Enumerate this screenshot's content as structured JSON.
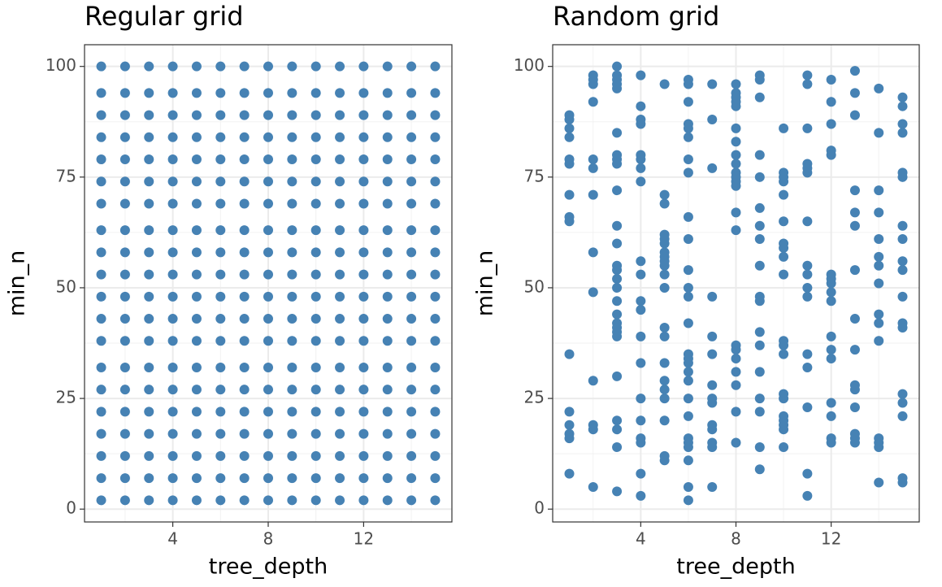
{
  "chart_data": [
    {
      "type": "scatter",
      "title": "Regular grid",
      "xlabel": "tree_depth",
      "ylabel": "min_n",
      "color": "#4682b4",
      "xlim": [
        0.3,
        15.7
      ],
      "ylim": [
        -2.9,
        104.9
      ],
      "xticks": [
        4,
        8,
        12
      ],
      "yticks": [
        0,
        25,
        50,
        75,
        100
      ],
      "xminor": [
        2,
        6,
        10,
        14
      ],
      "yminor": [
        12.5,
        37.5,
        62.5,
        87.5
      ],
      "grid": true,
      "x": [
        1,
        2,
        3,
        4,
        5,
        6,
        7,
        8,
        9,
        10,
        11,
        12,
        13,
        14,
        15,
        1,
        2,
        3,
        4,
        5,
        6,
        7,
        8,
        9,
        10,
        11,
        12,
        13,
        14,
        15,
        1,
        2,
        3,
        4,
        5,
        6,
        7,
        8,
        9,
        10,
        11,
        12,
        13,
        14,
        15,
        1,
        2,
        3,
        4,
        5,
        6,
        7,
        8,
        9,
        10,
        11,
        12,
        13,
        14,
        15,
        1,
        2,
        3,
        4,
        5,
        6,
        7,
        8,
        9,
        10,
        11,
        12,
        13,
        14,
        15,
        1,
        2,
        3,
        4,
        5,
        6,
        7,
        8,
        9,
        10,
        11,
        12,
        13,
        14,
        15,
        1,
        2,
        3,
        4,
        5,
        6,
        7,
        8,
        9,
        10,
        11,
        12,
        13,
        14,
        15,
        1,
        2,
        3,
        4,
        5,
        6,
        7,
        8,
        9,
        10,
        11,
        12,
        13,
        14,
        15,
        1,
        2,
        3,
        4,
        5,
        6,
        7,
        8,
        9,
        10,
        11,
        12,
        13,
        14,
        15,
        1,
        2,
        3,
        4,
        5,
        6,
        7,
        8,
        9,
        10,
        11,
        12,
        13,
        14,
        15,
        1,
        2,
        3,
        4,
        5,
        6,
        7,
        8,
        9,
        10,
        11,
        12,
        13,
        14,
        15,
        1,
        2,
        3,
        4,
        5,
        6,
        7,
        8,
        9,
        10,
        11,
        12,
        13,
        14,
        15,
        1,
        2,
        3,
        4,
        5,
        6,
        7,
        8,
        9,
        10,
        11,
        12,
        13,
        14,
        15,
        1,
        2,
        3,
        4,
        5,
        6,
        7,
        8,
        9,
        10,
        11,
        12,
        13,
        14,
        15,
        1,
        2,
        3,
        4,
        5,
        6,
        7,
        8,
        9,
        10,
        11,
        12,
        13,
        14,
        15,
        1,
        2,
        3,
        4,
        5,
        6,
        7,
        8,
        9,
        10,
        11,
        12,
        13,
        14,
        15,
        1,
        2,
        3,
        4,
        5,
        6,
        7,
        8,
        9,
        10,
        11,
        12,
        13,
        14,
        15,
        1,
        2,
        3,
        4,
        5,
        6,
        7,
        8,
        9,
        10,
        11,
        12,
        13,
        14,
        15,
        1,
        2,
        3,
        4,
        5,
        6,
        7,
        8,
        9,
        10,
        11,
        12,
        13,
        14,
        15,
        1,
        2,
        3,
        4,
        5,
        6,
        7,
        8,
        9,
        10,
        11,
        12,
        13,
        14,
        15
      ],
      "values": [
        2,
        2,
        2,
        2,
        2,
        2,
        2,
        2,
        2,
        2,
        2,
        2,
        2,
        2,
        2,
        7,
        7,
        7,
        7,
        7,
        7,
        7,
        7,
        7,
        7,
        7,
        7,
        7,
        7,
        7,
        12,
        12,
        12,
        12,
        12,
        12,
        12,
        12,
        12,
        12,
        12,
        12,
        12,
        12,
        12,
        17,
        17,
        17,
        17,
        17,
        17,
        17,
        17,
        17,
        17,
        17,
        17,
        17,
        17,
        17,
        22,
        22,
        22,
        22,
        22,
        22,
        22,
        22,
        22,
        22,
        22,
        22,
        22,
        22,
        22,
        27,
        27,
        27,
        27,
        27,
        27,
        27,
        27,
        27,
        27,
        27,
        27,
        27,
        27,
        27,
        32,
        32,
        32,
        32,
        32,
        32,
        32,
        32,
        32,
        32,
        32,
        32,
        32,
        32,
        32,
        38,
        38,
        38,
        38,
        38,
        38,
        38,
        38,
        38,
        38,
        38,
        38,
        38,
        38,
        38,
        43,
        43,
        43,
        43,
        43,
        43,
        43,
        43,
        43,
        43,
        43,
        43,
        43,
        43,
        43,
        48,
        48,
        48,
        48,
        48,
        48,
        48,
        48,
        48,
        48,
        48,
        48,
        48,
        48,
        48,
        53,
        53,
        53,
        53,
        53,
        53,
        53,
        53,
        53,
        53,
        53,
        53,
        53,
        53,
        53,
        58,
        58,
        58,
        58,
        58,
        58,
        58,
        58,
        58,
        58,
        58,
        58,
        58,
        58,
        58,
        63,
        63,
        63,
        63,
        63,
        63,
        63,
        63,
        63,
        63,
        63,
        63,
        63,
        63,
        63,
        69,
        69,
        69,
        69,
        69,
        69,
        69,
        69,
        69,
        69,
        69,
        69,
        69,
        69,
        69,
        74,
        74,
        74,
        74,
        74,
        74,
        74,
        74,
        74,
        74,
        74,
        74,
        74,
        74,
        74,
        79,
        79,
        79,
        79,
        79,
        79,
        79,
        79,
        79,
        79,
        79,
        79,
        79,
        79,
        79,
        84,
        84,
        84,
        84,
        84,
        84,
        84,
        84,
        84,
        84,
        84,
        84,
        84,
        84,
        84,
        89,
        89,
        89,
        89,
        89,
        89,
        89,
        89,
        89,
        89,
        89,
        89,
        89,
        89,
        89,
        94,
        94,
        94,
        94,
        94,
        94,
        94,
        94,
        94,
        94,
        94,
        94,
        94,
        94,
        94,
        100,
        100,
        100,
        100,
        100,
        100,
        100,
        100,
        100,
        100,
        100,
        100,
        100,
        100,
        100
      ]
    },
    {
      "type": "scatter",
      "title": "Random grid",
      "xlabel": "tree_depth",
      "ylabel": "min_n",
      "color": "#4682b4",
      "xlim": [
        0.3,
        15.7
      ],
      "ylim": [
        -2.9,
        104.9
      ],
      "xticks": [
        4,
        8,
        12
      ],
      "yticks": [
        0,
        25,
        50,
        75,
        100
      ],
      "xminor": [
        2,
        6,
        10,
        14
      ],
      "yminor": [
        12.5,
        37.5,
        62.5,
        87.5
      ],
      "grid": true,
      "x": [
        1,
        1,
        1,
        1,
        1,
        1,
        1,
        1,
        1,
        1,
        1,
        1,
        1,
        1,
        1,
        2,
        2,
        2,
        2,
        2,
        2,
        2,
        2,
        2,
        2,
        2,
        2,
        2,
        3,
        3,
        3,
        3,
        3,
        3,
        3,
        3,
        3,
        3,
        3,
        3,
        3,
        3,
        3,
        3,
        3,
        3,
        3,
        3,
        3,
        3,
        3,
        3,
        3,
        3,
        3,
        4,
        4,
        4,
        4,
        4,
        4,
        4,
        4,
        4,
        4,
        4,
        4,
        4,
        4,
        4,
        4,
        4,
        4,
        4,
        4,
        5,
        5,
        5,
        5,
        5,
        5,
        5,
        5,
        5,
        5,
        5,
        5,
        5,
        5,
        5,
        5,
        5,
        5,
        5,
        5,
        5,
        6,
        6,
        6,
        6,
        6,
        6,
        6,
        6,
        6,
        6,
        6,
        6,
        6,
        6,
        6,
        6,
        6,
        6,
        6,
        6,
        6,
        6,
        6,
        6,
        6,
        6,
        6,
        7,
        7,
        7,
        7,
        7,
        7,
        7,
        7,
        7,
        7,
        7,
        7,
        7,
        7,
        8,
        8,
        8,
        8,
        8,
        8,
        8,
        8,
        8,
        8,
        8,
        8,
        8,
        8,
        8,
        8,
        8,
        8,
        8,
        8,
        8,
        8,
        9,
        9,
        9,
        9,
        9,
        9,
        9,
        9,
        9,
        9,
        9,
        9,
        9,
        9,
        9,
        9,
        9,
        9,
        10,
        10,
        10,
        10,
        10,
        10,
        10,
        10,
        10,
        10,
        10,
        10,
        10,
        10,
        10,
        10,
        10,
        10,
        10,
        10,
        11,
        11,
        11,
        11,
        11,
        11,
        11,
        11,
        11,
        11,
        11,
        11,
        11,
        11,
        11,
        11,
        12,
        12,
        12,
        12,
        12,
        12,
        12,
        12,
        12,
        12,
        12,
        12,
        12,
        12,
        12,
        12,
        12,
        13,
        13,
        13,
        13,
        13,
        13,
        13,
        13,
        13,
        13,
        13,
        13,
        13,
        13,
        13,
        14,
        14,
        14,
        14,
        14,
        14,
        14,
        14,
        14,
        14,
        14,
        14,
        14,
        14,
        14,
        15,
        15,
        15,
        15,
        15,
        15,
        15,
        15,
        15,
        15,
        15,
        15,
        15,
        15,
        15,
        15,
        15,
        15
      ],
      "values": [
        89,
        88,
        86,
        84,
        79,
        78,
        71,
        66,
        65,
        35,
        22,
        19,
        17,
        16,
        8,
        98,
        97,
        96,
        92,
        79,
        77,
        71,
        58,
        49,
        29,
        19,
        18,
        5,
        100,
        98,
        97,
        96,
        95,
        85,
        80,
        79,
        78,
        72,
        64,
        60,
        55,
        54,
        52,
        50,
        47,
        44,
        42,
        41,
        40,
        39,
        30,
        20,
        18,
        14,
        4,
        98,
        91,
        88,
        87,
        80,
        79,
        77,
        74,
        56,
        53,
        47,
        45,
        39,
        33,
        25,
        20,
        16,
        15,
        8,
        3,
        96,
        71,
        69,
        62,
        61,
        60,
        58,
        57,
        56,
        55,
        53,
        50,
        41,
        39,
        33,
        29,
        27,
        25,
        20,
        12,
        11,
        97,
        96,
        92,
        87,
        86,
        84,
        79,
        76,
        66,
        61,
        54,
        50,
        48,
        42,
        35,
        34,
        33,
        31,
        29,
        25,
        21,
        16,
        15,
        14,
        11,
        5,
        2,
        96,
        88,
        77,
        48,
        39,
        35,
        28,
        25,
        24,
        19,
        18,
        15,
        14,
        5,
        96,
        94,
        93,
        92,
        91,
        86,
        83,
        80,
        78,
        76,
        75,
        74,
        73,
        67,
        63,
        37,
        36,
        34,
        31,
        28,
        22,
        15,
        98,
        97,
        93,
        80,
        75,
        68,
        64,
        61,
        55,
        48,
        47,
        40,
        37,
        31,
        25,
        22,
        14,
        9,
        86,
        76,
        75,
        74,
        71,
        65,
        60,
        59,
        57,
        53,
        38,
        37,
        35,
        26,
        25,
        21,
        20,
        19,
        18,
        14,
        98,
        96,
        86,
        78,
        77,
        76,
        65,
        55,
        53,
        50,
        48,
        35,
        32,
        23,
        8,
        3,
        97,
        92,
        87,
        81,
        80,
        53,
        52,
        51,
        49,
        47,
        39,
        36,
        34,
        24,
        21,
        16,
        15,
        99,
        94,
        89,
        72,
        67,
        64,
        54,
        43,
        36,
        28,
        27,
        23,
        17,
        16,
        15,
        95,
        85,
        72,
        67,
        61,
        57,
        55,
        51,
        44,
        42,
        38,
        16,
        15,
        14,
        6,
        93,
        91,
        87,
        85,
        76,
        75,
        64,
        61,
        56,
        54,
        48,
        42,
        41,
        26,
        24,
        21,
        7,
        6
      ]
    }
  ]
}
